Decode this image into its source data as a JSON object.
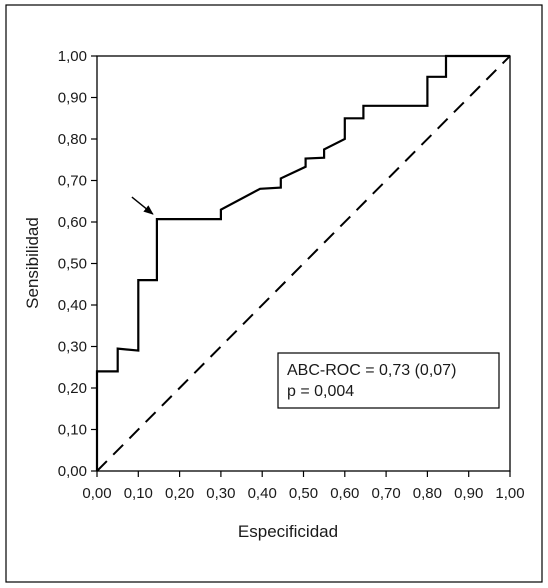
{
  "chart_data": {
    "type": "line",
    "xlabel": "Especificidad",
    "ylabel": "Sensibilidad",
    "xlim": [
      0,
      1
    ],
    "ylim": [
      0,
      1
    ],
    "x_ticks": [
      "0,00",
      "0,10",
      "0,20",
      "0,30",
      "0,40",
      "0,50",
      "0,60",
      "0,70",
      "0,80",
      "0,90",
      "1,00"
    ],
    "y_ticks": [
      "0,00",
      "0,10",
      "0,20",
      "0,30",
      "0,40",
      "0,50",
      "0,60",
      "0,70",
      "0,80",
      "0,90",
      "1,00"
    ],
    "grid": false,
    "series": [
      {
        "style": "solid",
        "x": [
          0,
          0,
          0.05,
          0.05,
          0.1,
          0.1,
          0.145,
          0.145,
          0.3,
          0.3,
          0.395,
          0.445,
          0.445,
          0.505,
          0.505,
          0.55,
          0.55,
          0.6,
          0.6,
          0.645,
          0.645,
          0.8,
          0.8,
          0.845,
          0.845,
          1.0
        ],
        "y": [
          0,
          0.24,
          0.24,
          0.295,
          0.29,
          0.46,
          0.46,
          0.607,
          0.607,
          0.63,
          0.68,
          0.683,
          0.705,
          0.733,
          0.753,
          0.755,
          0.775,
          0.8,
          0.85,
          0.85,
          0.88,
          0.88,
          0.95,
          0.95,
          1.0,
          1.0
        ]
      },
      {
        "style": "dashed",
        "x": [
          0,
          1
        ],
        "y": [
          0,
          1
        ]
      }
    ],
    "annotations": [
      {
        "type": "arrow",
        "target_x": 0.145,
        "target_y": 0.607
      }
    ],
    "legend_box": {
      "line1": "ABC-ROC = 0,73 (0,07)",
      "line2": "p = 0,004"
    }
  }
}
